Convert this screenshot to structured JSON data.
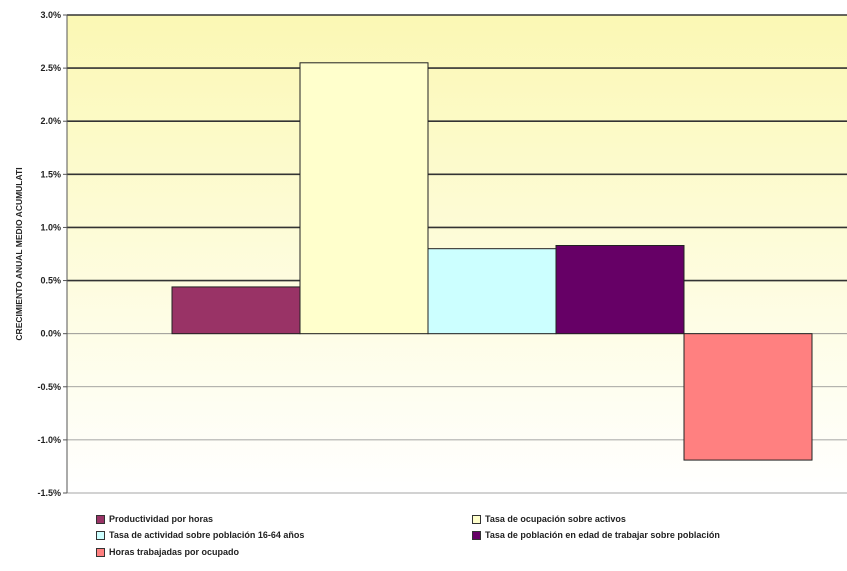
{
  "chart_data": {
    "type": "bar",
    "ylabel": "CRECIMIENTO ANUAL MEDIO ACUMULATI",
    "ylim": [
      -1.5,
      3.0
    ],
    "yticks": [
      "3.0%",
      "2.5%",
      "2.0%",
      "1.5%",
      "1.0%",
      "0.5%",
      "0.0%",
      "-0.5%",
      "-1.0%",
      "-1.5%"
    ],
    "grid": "horizontal major lines at each 0.5%",
    "legend_position": "bottom",
    "series": [
      {
        "name": "Productividad por horas",
        "value": 0.44,
        "color": "#993366"
      },
      {
        "name": "Tasa de ocupación sobre activos",
        "value": 2.55,
        "color": "#ffffcc"
      },
      {
        "name": "Tasa de actividad sobre población 16-64 años",
        "value": 0.8,
        "color": "#ccffff"
      },
      {
        "name": "Tasa de población en edad de trabajar sobre población",
        "value": 0.83,
        "color": "#660066"
      },
      {
        "name": "Horas trabajadas por ocupado",
        "value": -1.19,
        "color": "#ff8080"
      }
    ]
  }
}
